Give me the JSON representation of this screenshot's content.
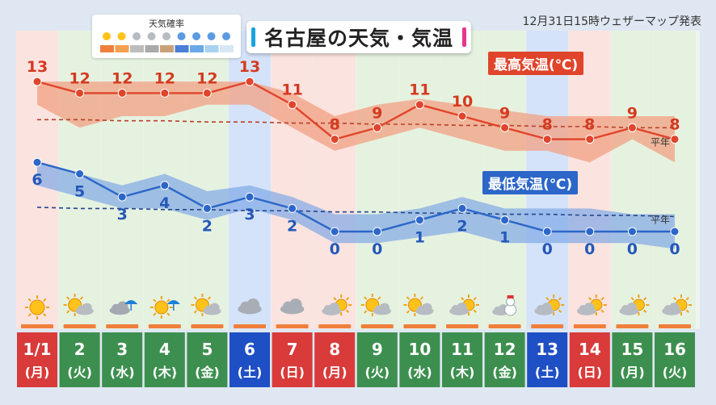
{
  "header": {
    "title": "名古屋の天気・気温",
    "issued": "12月31日15時ウェザーマップ発表"
  },
  "legend": {
    "title": "天気確率",
    "icons": [
      "sun-icon",
      "sun-cloud-icon",
      "cloud-icon",
      "cloud-sun-icon",
      "sun-cloud-icon",
      "cloud-rain-icon",
      "umbrella-icon",
      "snow-icon",
      "snowman-icon"
    ],
    "colors": [
      "#f07f3c",
      "#f5a04f",
      "#bdbdbd",
      "#aaaaaa",
      "#c9a27a",
      "#4b7fd6",
      "#6aa8e8",
      "#a7d3f0",
      "#d6e8f5"
    ]
  },
  "labels": {
    "max": "最高気温(℃)",
    "min": "最低気温(℃)",
    "normal": "平年"
  },
  "colors": {
    "max_line": "#e0442b",
    "max_band": "#f2a083",
    "min_line": "#2c66c8",
    "min_band": "#7fa8e6",
    "weekday": "#3d8f4f",
    "saturday": "#1f4fc4",
    "holiday": "#d93a3a"
  },
  "chart_data": {
    "type": "line",
    "x": [
      "1/1",
      "2",
      "3",
      "4",
      "5",
      "6",
      "7",
      "8",
      "9",
      "10",
      "11",
      "12",
      "13",
      "14",
      "15",
      "16"
    ],
    "weekdays": [
      "(月)",
      "(火)",
      "(水)",
      "(木)",
      "(金)",
      "(土)",
      "(日)",
      "(月)",
      "(火)",
      "(水)",
      "(木)",
      "(金)",
      "(土)",
      "(日)",
      "(月)",
      "(火)"
    ],
    "day_types": [
      "holiday",
      "weekday",
      "weekday",
      "weekday",
      "weekday",
      "saturday",
      "holiday",
      "holiday",
      "weekday",
      "weekday",
      "weekday",
      "weekday",
      "saturday",
      "holiday",
      "weekday",
      "weekday"
    ],
    "series": [
      {
        "name": "最高気温(℃)",
        "values": [
          13,
          12,
          12,
          12,
          12,
          13,
          11,
          8,
          9,
          11,
          10,
          9,
          8,
          8,
          9,
          8
        ],
        "band_low": [
          11,
          9,
          10,
          10,
          11,
          11,
          9,
          7,
          8,
          9,
          8,
          7,
          7,
          6,
          8,
          6
        ],
        "band_high": [
          13,
          13,
          13,
          13,
          13,
          13,
          12,
          10,
          11,
          11.5,
          11,
          10.5,
          10,
          10,
          10,
          10
        ],
        "normal": [
          9.7,
          9.7,
          9.6,
          9.6,
          9.5,
          9.5,
          9.4,
          9.4,
          9.3,
          9.3,
          9.2,
          9.2,
          9.1,
          9.1,
          9.0,
          9.0
        ]
      },
      {
        "name": "最低気温(℃)",
        "values": [
          6,
          5,
          3,
          4,
          2,
          3,
          2,
          0,
          0,
          1,
          2,
          1,
          0,
          0,
          0,
          0
        ],
        "band_low": [
          4,
          3,
          2,
          2,
          1,
          2,
          1,
          -1,
          -1,
          -0.5,
          0,
          -1,
          -1,
          -1,
          -1,
          -1.5
        ],
        "band_high": [
          6,
          5,
          4,
          5,
          3.5,
          4,
          3,
          1.5,
          1.5,
          2,
          3,
          2,
          2,
          2,
          1.5,
          1.5
        ],
        "normal": [
          2.1,
          2.0,
          2.0,
          1.9,
          1.9,
          1.8,
          1.8,
          1.7,
          1.7,
          1.6,
          1.6,
          1.5,
          1.5,
          1.4,
          1.4,
          1.3
        ]
      }
    ],
    "weather_icons": [
      "sun-icon",
      "sun-cloud-icon",
      "cloud-rain-icon",
      "sun-rain-icon",
      "sun-cloud-icon",
      "cloud-icon",
      "cloud-icon",
      "cloud-sun-icon",
      "sun-cloud-icon",
      "sun-cloud-icon",
      "cloud-sun-icon",
      "snowman-icon",
      "cloud-sun-icon",
      "cloud-sun-icon",
      "cloud-sun-icon",
      "cloud-sun-icon"
    ],
    "ylim": [
      -3,
      14
    ],
    "grid": false
  }
}
